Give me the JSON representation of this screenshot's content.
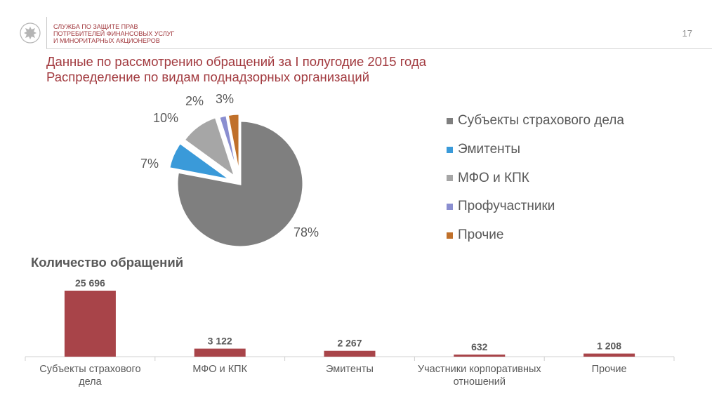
{
  "header": {
    "org_name": "СЛУЖБА ПО ЗАЩИТЕ ПРАВ\nПОТРЕБИТЕЛЕЙ ФИНАНСОВЫХ УСЛУГ\nИ МИНОРИТАРНЫХ АКЦИОНЕРОВ",
    "page_number": "17",
    "logo_icon": "eagle-emblem-icon"
  },
  "title": {
    "line1": "Данные по рассмотрению обращений за I полугодие 2015 года",
    "line2": "Распределение по видам поднадзорных организаций"
  },
  "bar_section_title": "Количество обращений",
  "chart_data": [
    {
      "type": "pie",
      "title": "",
      "legend_position": "right",
      "slices": [
        {
          "name": "Субъекты страхового дела",
          "value": 78,
          "label": "78%",
          "color": "#7f7f7f"
        },
        {
          "name": "Эмитенты",
          "value": 7,
          "label": "7%",
          "color": "#3a9ad9"
        },
        {
          "name": "МФО и КПК",
          "value": 10,
          "label": "10%",
          "color": "#a6a6a6"
        },
        {
          "name": "Профучастники",
          "value": 2,
          "label": "2%",
          "color": "#8a8ed0"
        },
        {
          "name": "Прочие",
          "value": 3,
          "label": "3%",
          "color": "#c0702a"
        }
      ]
    },
    {
      "type": "bar",
      "title": "Количество обращений",
      "xlabel": "",
      "ylabel": "",
      "grid": false,
      "categories": [
        "Субъекты страхового\nдела",
        "МФО и КПК",
        "Эмитенты",
        "Участники корпоративных\nотношений",
        "Прочие"
      ],
      "values": [
        25696,
        3122,
        2267,
        632,
        1208
      ],
      "value_labels": [
        "25 696",
        "3 122",
        "2 267",
        "632",
        "1 208"
      ],
      "ylim": [
        0,
        25696
      ],
      "color": "#a84449"
    }
  ]
}
